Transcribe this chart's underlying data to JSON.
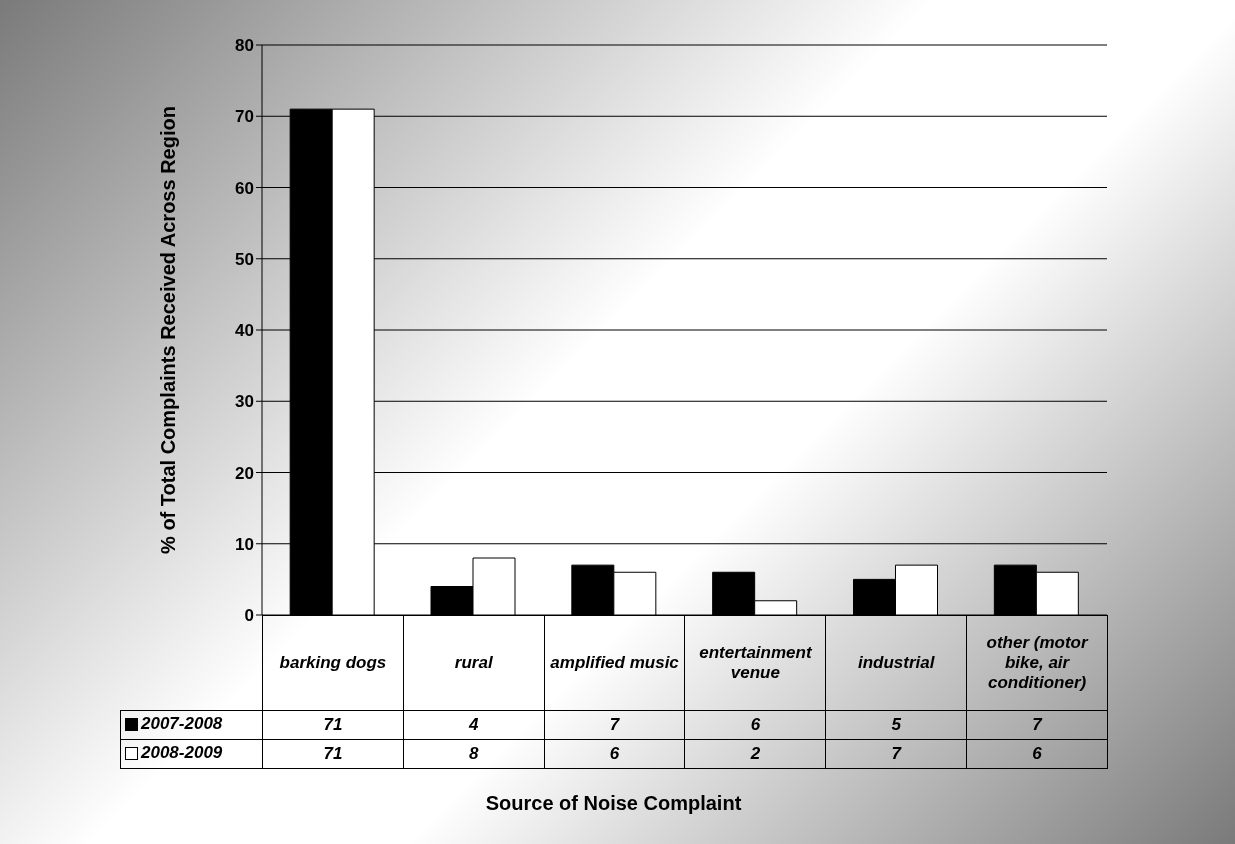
{
  "chart_data": {
    "type": "bar",
    "xlabel": "Source of Noise Complaint",
    "ylabel": "% of Total Complaints Received Across Region",
    "categories": [
      "barking dogs",
      "rural",
      "amplified music",
      "entertainment venue",
      "industrial",
      "other (motor bike, air conditioner)"
    ],
    "series": [
      {
        "name": "2007-2008",
        "color": "#000000",
        "values": [
          71,
          4,
          7,
          6,
          5,
          7
        ]
      },
      {
        "name": "2008-2009",
        "color": "#ffffff",
        "values": [
          71,
          8,
          6,
          2,
          7,
          6
        ]
      }
    ],
    "ylim": [
      0,
      80
    ],
    "yticks": [
      0,
      10,
      20,
      30,
      40,
      50,
      60,
      70,
      80
    ],
    "grid": "y",
    "legend": "bottom left",
    "data_labels": true
  }
}
